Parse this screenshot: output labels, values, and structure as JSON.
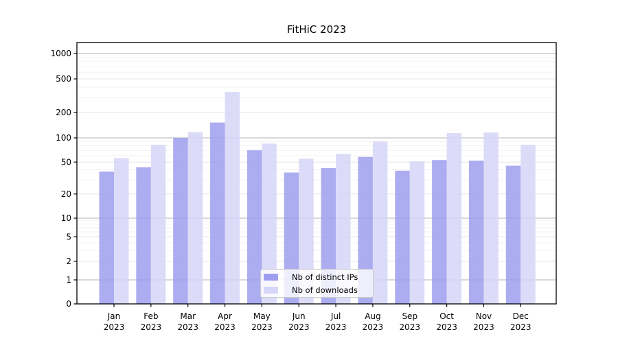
{
  "title": "FitHiC 2023",
  "chart_data": {
    "type": "bar",
    "title": "FitHiC 2023",
    "categories": [
      "Jan 2023",
      "Feb 2023",
      "Mar 2023",
      "Apr 2023",
      "May 2023",
      "Jun 2023",
      "Jul 2023",
      "Aug 2023",
      "Sep 2023",
      "Oct 2023",
      "Nov 2023",
      "Dec 2023"
    ],
    "series": [
      {
        "name": "Nb of distinct IPs",
        "color": "#9e9eef",
        "values": [
          38,
          43,
          100,
          152,
          70,
          37,
          42,
          58,
          39,
          53,
          52,
          45
        ]
      },
      {
        "name": "Nb of downloads",
        "color": "#d6d6f8",
        "values": [
          56,
          82,
          117,
          350,
          85,
          55,
          63,
          90,
          51,
          114,
          116,
          82
        ]
      }
    ],
    "yticks": [
      0,
      1,
      2,
      5,
      10,
      20,
      50,
      100,
      200,
      500,
      1000
    ],
    "yscale": "symlog",
    "ylim": [
      0,
      1350
    ],
    "xlabel": "",
    "ylabel": "",
    "grid": true,
    "legend_position": "lower center",
    "colors": {
      "grid_major": "#b3b3b3",
      "grid_mid": "#e4e4e4",
      "grid_minor": "#f2f2f2",
      "spine": "#000000",
      "text": "#000000"
    }
  }
}
